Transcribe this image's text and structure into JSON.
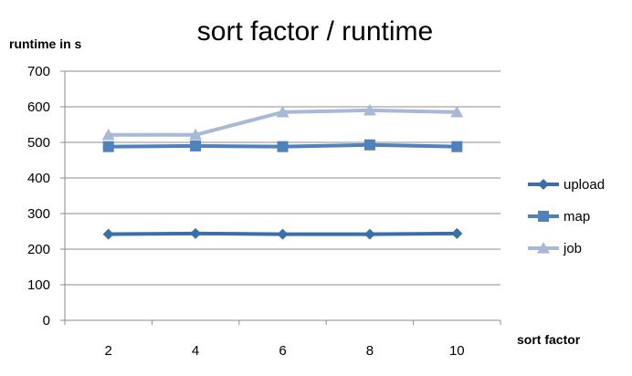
{
  "chart_data": {
    "type": "line",
    "title": "sort factor / runtime",
    "ylabel": "runtime in s",
    "xlabel": "sort factor",
    "categories": [
      "2",
      "4",
      "6",
      "8",
      "10"
    ],
    "ylim": [
      0,
      700
    ],
    "yticks": [
      "0",
      "100",
      "200",
      "300",
      "400",
      "500",
      "600",
      "700"
    ],
    "grid": true,
    "legend_position": "right",
    "series": [
      {
        "name": "upload",
        "values": [
          242,
          244,
          242,
          242,
          244
        ],
        "color": "#3A6FA8",
        "marker": "diamond"
      },
      {
        "name": "map",
        "values": [
          488,
          490,
          488,
          493,
          488
        ],
        "color": "#4F81BD",
        "marker": "square"
      },
      {
        "name": "job",
        "values": [
          521,
          521,
          585,
          590,
          585
        ],
        "color": "#A7B9D6",
        "marker": "triangle"
      }
    ]
  }
}
